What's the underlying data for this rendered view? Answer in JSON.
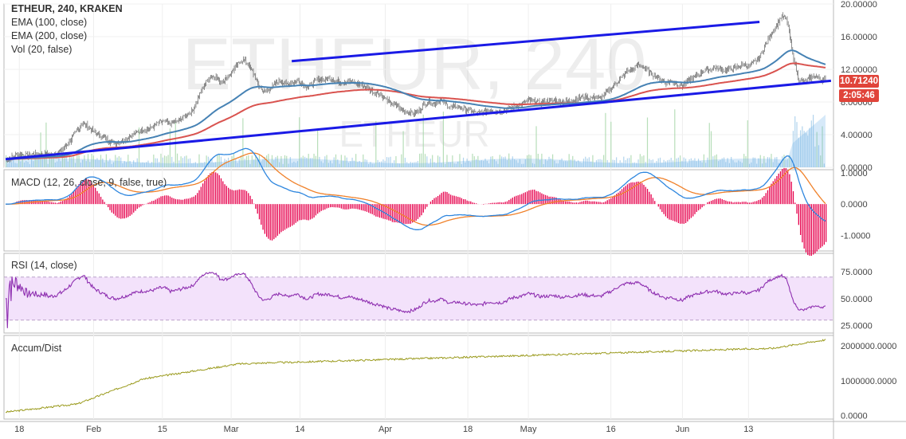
{
  "chart_data": [
    {
      "type": "candlestick",
      "legend": {
        "title": "ETHEUR, 240, KRAKEN",
        "items": [
          "EMA (100, close)",
          "EMA (200, close)",
          "Vol (20, false)"
        ]
      },
      "watermark": {
        "symbol": "ETHEUR, 240",
        "name": "ETHEUR"
      },
      "ylim": [
        0,
        20
      ],
      "yticks": [
        "20.00000",
        "16.00000",
        "12.00000",
        "8.00000",
        "4.00000",
        "0.00000"
      ],
      "price_badge": {
        "value": "10.71240",
        "color": "#e0443a"
      },
      "time_badge": {
        "value": "2:05:46",
        "color": "#e0443a"
      },
      "price_path": [
        [
          0,
          1.0
        ],
        [
          2,
          1.2
        ],
        [
          4,
          1.5
        ],
        [
          5,
          1.6
        ],
        [
          6,
          1.4
        ],
        [
          7,
          1.6
        ],
        [
          8,
          1.5
        ],
        [
          9,
          1.7
        ],
        [
          10,
          1.5
        ],
        [
          11,
          1.7
        ],
        [
          12,
          2.0
        ],
        [
          13,
          2.6
        ],
        [
          14,
          3.5
        ],
        [
          15,
          4.5
        ],
        [
          16,
          5.4
        ],
        [
          17,
          5.0
        ],
        [
          18,
          4.3
        ],
        [
          19,
          4.0
        ],
        [
          20,
          3.6
        ],
        [
          21,
          3.2
        ],
        [
          22,
          3.0
        ],
        [
          23,
          3.2
        ],
        [
          24,
          3.5
        ],
        [
          25,
          4.0
        ],
        [
          26,
          4.3
        ],
        [
          27,
          4.6
        ],
        [
          28,
          4.7
        ],
        [
          29,
          5.0
        ],
        [
          30,
          5.5
        ],
        [
          31,
          5.6
        ],
        [
          32,
          5.3
        ],
        [
          33,
          5.6
        ],
        [
          34,
          6.0
        ],
        [
          35,
          6.5
        ],
        [
          36,
          7.0
        ],
        [
          37,
          8.5
        ],
        [
          38,
          10.0
        ],
        [
          39,
          11.0
        ],
        [
          40,
          11.2
        ],
        [
          41,
          10.5
        ],
        [
          42,
          10.8
        ],
        [
          43,
          11.6
        ],
        [
          44,
          12.4
        ],
        [
          45,
          13.2
        ],
        [
          46,
          12.8
        ],
        [
          47,
          11.5
        ],
        [
          48,
          10.0
        ],
        [
          49,
          9.2
        ],
        [
          50,
          9.6
        ],
        [
          51,
          10.2
        ],
        [
          52,
          10.6
        ],
        [
          53,
          10.1
        ],
        [
          54,
          10.4
        ],
        [
          55,
          10.6
        ],
        [
          56,
          10.2
        ],
        [
          57,
          9.8
        ],
        [
          58,
          10.4
        ],
        [
          59,
          10.8
        ],
        [
          60,
          10.7
        ],
        [
          61,
          10.9
        ],
        [
          62,
          10.6
        ],
        [
          63,
          10.4
        ],
        [
          64,
          10.6
        ],
        [
          65,
          10.4
        ],
        [
          66,
          10.2
        ],
        [
          67,
          10.0
        ],
        [
          68,
          9.6
        ],
        [
          69,
          9.2
        ],
        [
          70,
          9.0
        ],
        [
          71,
          8.4
        ],
        [
          72,
          7.8
        ],
        [
          73,
          7.6
        ],
        [
          74,
          7.0
        ],
        [
          75,
          6.8
        ],
        [
          76,
          6.6
        ],
        [
          77,
          6.8
        ],
        [
          78,
          7.6
        ],
        [
          79,
          8.0
        ],
        [
          80,
          7.8
        ],
        [
          81,
          8.3
        ],
        [
          82,
          7.7
        ],
        [
          83,
          7.3
        ],
        [
          84,
          7.5
        ],
        [
          85,
          7.2
        ],
        [
          86,
          7.0
        ],
        [
          87,
          6.8
        ],
        [
          88,
          6.6
        ],
        [
          89,
          6.8
        ],
        [
          90,
          7.0
        ],
        [
          91,
          6.9
        ],
        [
          92,
          6.8
        ],
        [
          93,
          7.0
        ],
        [
          94,
          7.4
        ],
        [
          95,
          7.6
        ],
        [
          96,
          7.8
        ],
        [
          97,
          8.2
        ],
        [
          98,
          8.1
        ],
        [
          99,
          7.9
        ],
        [
          100,
          8.0
        ],
        [
          101,
          8.1
        ],
        [
          102,
          8.2
        ],
        [
          103,
          8.0
        ],
        [
          104,
          8.1
        ],
        [
          105,
          8.2
        ],
        [
          106,
          8.4
        ],
        [
          107,
          8.6
        ],
        [
          108,
          8.5
        ],
        [
          109,
          8.6
        ],
        [
          110,
          8.4
        ],
        [
          111,
          9.0
        ],
        [
          112,
          9.6
        ],
        [
          113,
          10.4
        ],
        [
          114,
          11.0
        ],
        [
          115,
          11.8
        ],
        [
          116,
          12.0
        ],
        [
          117,
          12.6
        ],
        [
          118,
          12.2
        ],
        [
          119,
          11.6
        ],
        [
          120,
          11.2
        ],
        [
          121,
          10.8
        ],
        [
          122,
          10.4
        ],
        [
          123,
          10.6
        ],
        [
          124,
          10.2
        ],
        [
          125,
          10.0
        ],
        [
          126,
          10.6
        ],
        [
          127,
          11.0
        ],
        [
          128,
          11.4
        ],
        [
          129,
          11.8
        ],
        [
          130,
          12.0
        ],
        [
          131,
          12.2
        ],
        [
          132,
          12.0
        ],
        [
          133,
          11.9
        ],
        [
          134,
          12.1
        ],
        [
          135,
          12.3
        ],
        [
          136,
          12.6
        ],
        [
          137,
          12.4
        ],
        [
          138,
          12.8
        ],
        [
          139,
          13.4
        ],
        [
          140,
          14.8
        ],
        [
          141,
          16.2
        ],
        [
          142,
          17.2
        ],
        [
          143,
          18.5
        ],
        [
          144,
          18.0
        ],
        [
          145,
          14.0
        ],
        [
          146,
          11.0
        ],
        [
          147,
          10.4
        ],
        [
          148,
          10.8
        ],
        [
          149,
          11.2
        ],
        [
          150,
          10.8
        ],
        [
          151,
          10.7
        ]
      ],
      "x_ticks": [
        {
          "i": 2.5,
          "label": "18"
        },
        {
          "i": 16,
          "label": "Feb"
        },
        {
          "i": 28.5,
          "label": "15"
        },
        {
          "i": 41,
          "label": "Mar"
        },
        {
          "i": 53.5,
          "label": "14"
        },
        {
          "i": 69,
          "label": "Apr"
        },
        {
          "i": 84,
          "label": "18"
        },
        {
          "i": 95,
          "label": "May"
        },
        {
          "i": 110,
          "label": "16"
        },
        {
          "i": 123,
          "label": "Jun"
        },
        {
          "i": 135,
          "label": "13"
        }
      ],
      "trendlines": [
        {
          "from": [
            0,
            1.0
          ],
          "to": [
            150,
            10.6
          ]
        },
        {
          "from": [
            52,
            13.0
          ],
          "to": [
            137,
            17.8
          ]
        }
      ]
    },
    {
      "type": "line",
      "title": "MACD (12, 26, close, 9, false, true)",
      "ylim": [
        -1.5,
        1.1
      ],
      "yticks": [
        "1.0000",
        "0.0000",
        "-1.0000"
      ]
    },
    {
      "type": "line",
      "title": "RSI (14, close)",
      "ylim": [
        18,
        92
      ],
      "yticks": [
        "75.0000",
        "50.0000",
        "25.0000"
      ],
      "band": [
        30,
        70
      ]
    },
    {
      "type": "line",
      "title": "Accum/Dist",
      "ylim": [
        -100000,
        2300000
      ],
      "yticks": [
        "2000000.0000",
        "1000000.0000",
        "0.0000"
      ]
    }
  ],
  "colors": {
    "ema100": "#4682b4",
    "ema200": "#d9534f",
    "trend": "#1a1ae6",
    "macd": "#2e86de",
    "signal": "#f0812a",
    "hist_pos": "#e6004c",
    "rsi": "#8e2fb0",
    "rsi_band": "#f3e2fb",
    "accum": "#9a9a1c",
    "volume": "#9ec9e8",
    "volume_green": "#a5d6a7"
  }
}
